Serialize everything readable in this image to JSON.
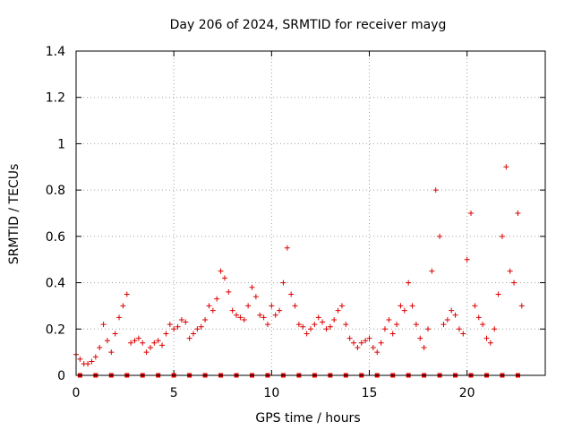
{
  "chart_data": {
    "type": "scatter",
    "title": "Day 206 of 2024, SRMTID for receiver mayg",
    "xlabel": "GPS time / hours",
    "ylabel": "SRMTID / TECUs",
    "xlim": [
      0,
      24
    ],
    "ylim": [
      0,
      1.4
    ],
    "x_ticks": [
      "0",
      "5",
      "10",
      "15",
      "20"
    ],
    "y_ticks": [
      "0",
      "0.2",
      "0.4",
      "0.6",
      "0.8",
      "1",
      "1.2",
      "1.4"
    ],
    "grid": true,
    "marker": "plus",
    "color": "#dd0000",
    "series": [
      {
        "name": "SRMTID",
        "x": [
          0.0,
          0.2,
          0.4,
          0.6,
          0.8,
          1.0,
          1.2,
          1.4,
          1.6,
          1.8,
          2.0,
          2.2,
          2.4,
          2.6,
          2.8,
          3.0,
          3.2,
          3.4,
          3.6,
          3.8,
          4.0,
          4.2,
          4.4,
          4.6,
          4.8,
          5.0,
          5.2,
          5.4,
          5.6,
          5.8,
          6.0,
          6.2,
          6.4,
          6.6,
          6.8,
          7.0,
          7.2,
          7.4,
          7.6,
          7.8,
          8.0,
          8.2,
          8.4,
          8.6,
          8.8,
          9.0,
          9.2,
          9.4,
          9.6,
          9.8,
          10.0,
          10.2,
          10.4,
          10.6,
          10.8,
          11.0,
          11.2,
          11.4,
          11.6,
          11.8,
          12.0,
          12.2,
          12.4,
          12.6,
          12.8,
          13.0,
          13.2,
          13.4,
          13.6,
          13.8,
          14.0,
          14.2,
          14.4,
          14.6,
          14.8,
          15.0,
          15.2,
          15.4,
          15.6,
          15.8,
          16.0,
          16.2,
          16.4,
          16.6,
          16.8,
          17.0,
          17.2,
          17.4,
          17.6,
          17.8,
          18.0,
          18.2,
          18.4,
          18.6,
          18.8,
          19.0,
          19.2,
          19.4,
          19.6,
          19.8,
          20.0,
          20.2,
          20.4,
          20.6,
          20.8,
          21.0,
          21.2,
          21.4,
          21.6,
          21.8,
          22.0,
          22.2,
          22.4,
          22.6,
          22.8
        ],
        "y": [
          0.09,
          0.07,
          0.05,
          0.05,
          0.06,
          0.08,
          0.12,
          0.22,
          0.15,
          0.1,
          0.18,
          0.25,
          0.3,
          0.35,
          0.14,
          0.15,
          0.16,
          0.14,
          0.1,
          0.12,
          0.14,
          0.15,
          0.13,
          0.18,
          0.22,
          0.2,
          0.21,
          0.24,
          0.23,
          0.16,
          0.18,
          0.2,
          0.21,
          0.24,
          0.3,
          0.28,
          0.33,
          0.45,
          0.42,
          0.36,
          0.28,
          0.26,
          0.25,
          0.24,
          0.3,
          0.38,
          0.34,
          0.26,
          0.25,
          0.22,
          0.3,
          0.26,
          0.28,
          0.4,
          0.55,
          0.35,
          0.3,
          0.22,
          0.21,
          0.18,
          0.2,
          0.22,
          0.25,
          0.23,
          0.2,
          0.21,
          0.24,
          0.28,
          0.3,
          0.22,
          0.16,
          0.14,
          0.12,
          0.14,
          0.15,
          0.16,
          0.12,
          0.1,
          0.14,
          0.2,
          0.24,
          0.18,
          0.22,
          0.3,
          0.28,
          0.4,
          0.3,
          0.22,
          0.16,
          0.12,
          0.2,
          0.45,
          0.8,
          0.6,
          0.22,
          0.24,
          0.28,
          0.26,
          0.2,
          0.18,
          0.5,
          0.7,
          0.3,
          0.25,
          0.22,
          0.16,
          0.14,
          0.2,
          0.35,
          0.6,
          0.9,
          0.45,
          0.4,
          0.7,
          0.3
        ]
      }
    ]
  }
}
